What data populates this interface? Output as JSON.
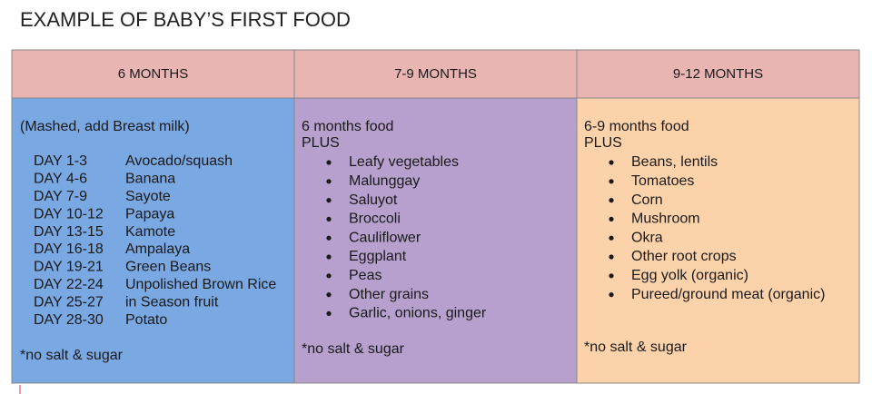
{
  "title": "EXAMPLE OF BABY’S FIRST FOOD",
  "table": {
    "columns": [
      {
        "header": "6 MONTHS",
        "intro": [
          "(Mashed, add Breast milk)"
        ],
        "schedule": [
          {
            "day": "DAY 1-3",
            "food": "Avocado/squash"
          },
          {
            "day": "DAY 4-6",
            "food": "Banana"
          },
          {
            "day": "DAY 7-9",
            "food": "Sayote"
          },
          {
            "day": "DAY 10-12",
            "food": "Papaya"
          },
          {
            "day": "DAY 13-15",
            "food": "Kamote"
          },
          {
            "day": "DAY 16-18",
            "food": "Ampalaya"
          },
          {
            "day": "DAY 19-21",
            "food": "Green Beans"
          },
          {
            "day": "DAY 22-24",
            "food": "Unpolished Brown Rice"
          },
          {
            "day": "DAY 25-27",
            "food": "in Season fruit"
          },
          {
            "day": "DAY 28-30",
            "food": "Potato"
          }
        ],
        "note": "*no salt & sugar"
      },
      {
        "header": "7-9 MONTHS",
        "intro": [
          "6 months food",
          "PLUS"
        ],
        "items": [
          "Leafy vegetables",
          "Malunggay",
          "Saluyot",
          "Broccoli",
          "Cauliflower",
          "Eggplant",
          "Peas",
          "Other  grains",
          "Garlic, onions, ginger"
        ],
        "note": "*no salt & sugar"
      },
      {
        "header": "9-12 MONTHS",
        "intro": [
          "6-9 months food",
          "PLUS"
        ],
        "items": [
          "Beans, lentils",
          "Tomatoes",
          "Corn",
          "Mushroom",
          "Okra",
          "Other root crops",
          "Egg yolk  (organic)",
          "Pureed/ground meat (organic)"
        ],
        "note": "*no salt & sugar"
      }
    ]
  }
}
